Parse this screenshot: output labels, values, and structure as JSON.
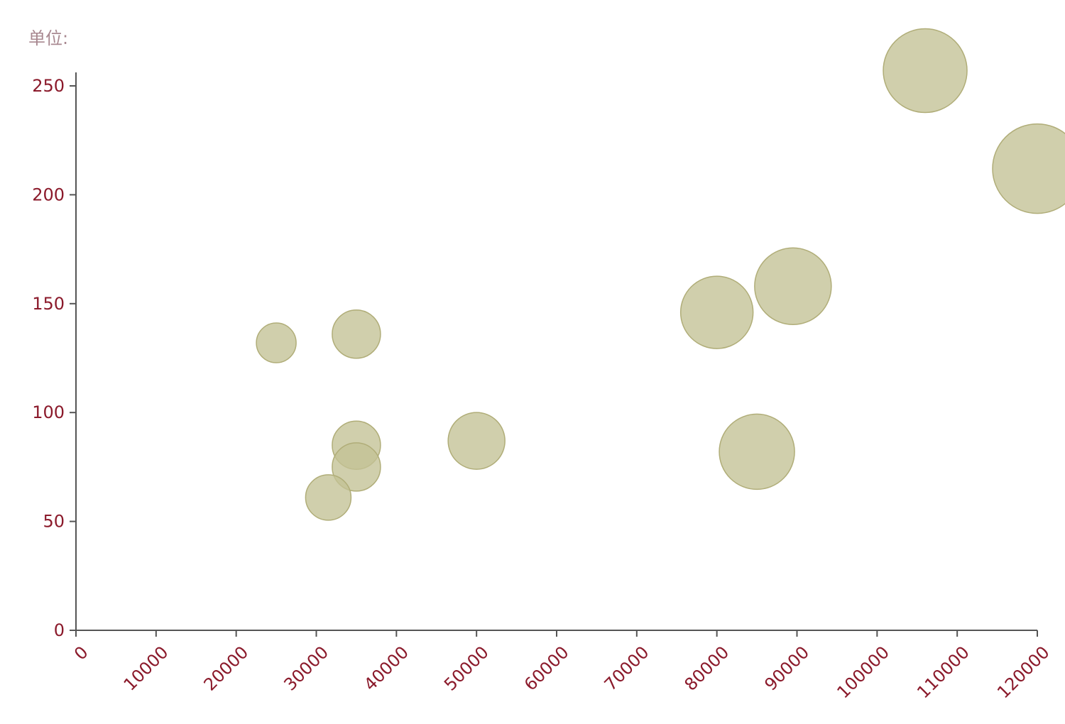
{
  "unit_label": "单位:",
  "colors": {
    "axis": "#555555",
    "tick_label": "#8b1a2b",
    "unit_label": "#a88890",
    "bubble_fill": "#c3c195",
    "bubble_stroke": "#b0ad78"
  },
  "chart_data": {
    "type": "scatter",
    "title": "",
    "xlabel": "",
    "ylabel": "",
    "xlim": [
      0,
      120000
    ],
    "ylim": [
      0,
      250
    ],
    "x_ticks": [
      "0",
      "10000",
      "20000",
      "30000",
      "40000",
      "50000",
      "60000",
      "70000",
      "80000",
      "90000",
      "100000",
      "110000",
      "120000"
    ],
    "y_ticks": [
      "0",
      "50",
      "100",
      "150",
      "200",
      "250"
    ],
    "grid": false,
    "legend": "none",
    "series": [
      {
        "points": [
          {
            "x": 25000,
            "y": 132,
            "size": 28
          },
          {
            "x": 35000,
            "y": 136,
            "size": 34
          },
          {
            "x": 35000,
            "y": 85,
            "size": 34
          },
          {
            "x": 35000,
            "y": 75,
            "size": 34
          },
          {
            "x": 31500,
            "y": 61,
            "size": 32
          },
          {
            "x": 50000,
            "y": 87,
            "size": 40
          },
          {
            "x": 80000,
            "y": 146,
            "size": 51
          },
          {
            "x": 85000,
            "y": 82,
            "size": 53
          },
          {
            "x": 89500,
            "y": 158,
            "size": 54
          },
          {
            "x": 106000,
            "y": 257,
            "size": 59
          },
          {
            "x": 120000,
            "y": 212,
            "size": 63
          }
        ]
      }
    ]
  }
}
